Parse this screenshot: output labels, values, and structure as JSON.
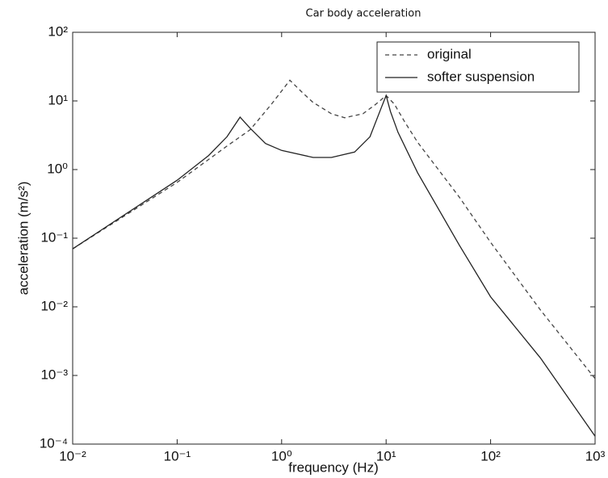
{
  "chart_data": {
    "type": "line",
    "title": "Car body acceleration",
    "xlabel": "frequency (Hz)",
    "ylabel": "acceleration (m/s²)",
    "xscale": "log",
    "yscale": "log",
    "xlim": [
      0.01,
      1000
    ],
    "ylim": [
      0.0001,
      100
    ],
    "xticks": [
      {
        "value": 0.01,
        "label": "10⁻²"
      },
      {
        "value": 0.1,
        "label": "10⁻¹"
      },
      {
        "value": 1,
        "label": "10⁰"
      },
      {
        "value": 10,
        "label": "10¹"
      },
      {
        "value": 100,
        "label": "10²"
      },
      {
        "value": 1000,
        "label": "10³"
      }
    ],
    "yticks": [
      {
        "value": 0.0001,
        "label": "10⁻⁴"
      },
      {
        "value": 0.001,
        "label": "10⁻³"
      },
      {
        "value": 0.01,
        "label": "10⁻²"
      },
      {
        "value": 0.1,
        "label": "10⁻¹"
      },
      {
        "value": 1,
        "label": "10⁰"
      },
      {
        "value": 10,
        "label": "10¹"
      },
      {
        "value": 100,
        "label": "10²"
      }
    ],
    "grid": false,
    "legend": "upper right",
    "series": [
      {
        "name": "original",
        "color": "#444444",
        "dash": "dashed",
        "x": [
          0.01,
          0.1,
          0.3,
          0.5,
          0.8,
          1.2,
          1.6,
          2,
          3,
          4,
          6,
          8,
          10,
          12,
          15,
          20,
          50,
          100,
          300,
          1000
        ],
        "values": [
          0.07,
          0.65,
          2.2,
          3.8,
          9,
          20,
          13,
          9.5,
          6.5,
          5.7,
          6.5,
          9,
          12,
          9,
          5,
          2.5,
          0.4,
          0.087,
          0.009,
          0.0009
        ]
      },
      {
        "name": "softer suspension",
        "color": "#222222",
        "dash": "solid",
        "x": [
          0.01,
          0.1,
          0.2,
          0.3,
          0.4,
          0.5,
          0.7,
          1,
          2,
          3,
          5,
          7,
          9,
          10,
          11,
          13,
          20,
          50,
          100,
          300,
          1000
        ],
        "values": [
          0.07,
          0.7,
          1.6,
          3,
          5.8,
          4,
          2.4,
          1.9,
          1.5,
          1.5,
          1.8,
          3,
          8,
          12,
          7,
          3.5,
          0.9,
          0.08,
          0.014,
          0.0018,
          0.00013
        ]
      }
    ]
  }
}
